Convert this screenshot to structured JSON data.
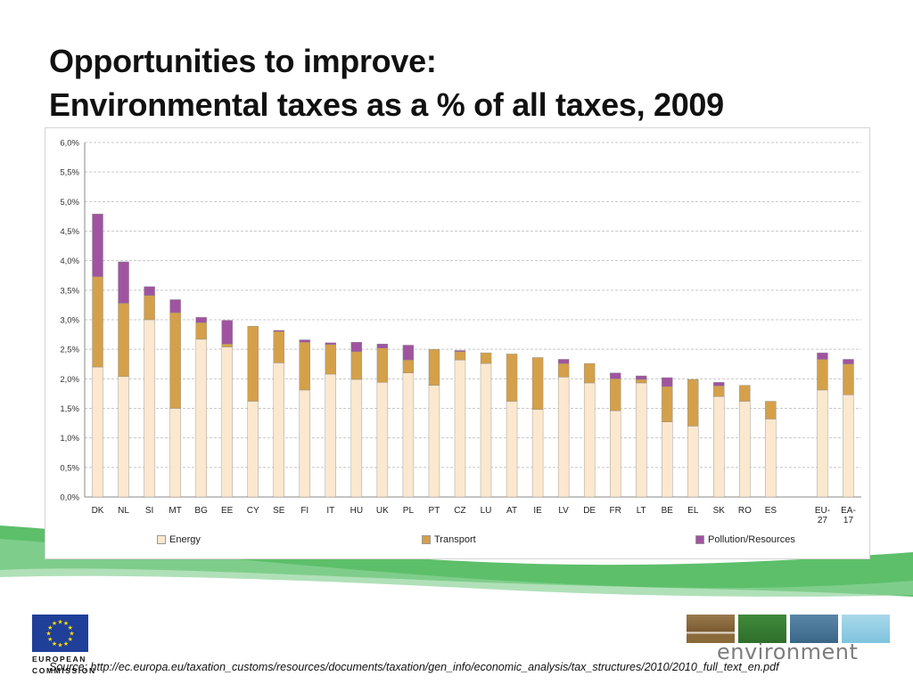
{
  "slide": {
    "title_line1": "Opportunities to improve:",
    "title_line2": "Environmental taxes as a % of all taxes, 2009",
    "source": "Source: http://ec.europa.eu/taxation_customs/resources/documents/taxation/gen_info/economic_analysis/tax_structures/2010/2010_full_text_en.pdf",
    "eu_logo_text": [
      "EUROPEAN",
      "COMMISSION"
    ],
    "env_logo_text": "environment"
  },
  "colors": {
    "energy": "#fce8cf",
    "transport": "#d4a04a",
    "pollution": "#a054a0",
    "grid": "#c8c8c8",
    "green_band": "#5dbf6a",
    "eu_blue": "#1f3f99",
    "eu_star": "#ffdd00"
  },
  "legend": [
    {
      "key": "energy",
      "label": "Energy"
    },
    {
      "key": "transport",
      "label": "Transport"
    },
    {
      "key": "pollution",
      "label": "Pollution/Resources"
    }
  ],
  "chart_data": {
    "type": "bar",
    "stacked": true,
    "title": "",
    "xlabel": "",
    "ylabel": "",
    "ylim": [
      0,
      6.0
    ],
    "yticks": [
      "0,0%",
      "0,5%",
      "1,0%",
      "1,5%",
      "2,0%",
      "2,5%",
      "3,0%",
      "3,5%",
      "4,0%",
      "4,5%",
      "5,0%",
      "5,5%",
      "6,0%"
    ],
    "grid": true,
    "legend_position": "bottom",
    "categories": [
      "DK",
      "NL",
      "SI",
      "MT",
      "BG",
      "EE",
      "CY",
      "SE",
      "FI",
      "IT",
      "HU",
      "UK",
      "PL",
      "PT",
      "CZ",
      "LU",
      "AT",
      "IE",
      "LV",
      "DE",
      "FR",
      "LT",
      "BE",
      "EL",
      "SK",
      "RO",
      "ES",
      "",
      "EU-27",
      "EA-17"
    ],
    "series": [
      {
        "name": "Energy",
        "key": "energy",
        "values": [
          2.2,
          2.04,
          3.0,
          1.5,
          2.67,
          2.54,
          1.62,
          2.27,
          1.81,
          2.08,
          1.99,
          1.94,
          2.1,
          1.89,
          2.32,
          2.26,
          1.62,
          1.48,
          2.03,
          1.93,
          1.46,
          1.93,
          1.27,
          1.2,
          1.7,
          1.62,
          1.32,
          null,
          1.81,
          1.73
        ]
      },
      {
        "name": "Transport",
        "key": "transport",
        "values": [
          1.53,
          1.24,
          0.41,
          1.62,
          0.28,
          0.05,
          1.27,
          0.53,
          0.81,
          0.5,
          0.47,
          0.58,
          0.22,
          0.61,
          0.14,
          0.18,
          0.8,
          0.88,
          0.23,
          0.33,
          0.54,
          0.06,
          0.6,
          0.79,
          0.18,
          0.27,
          0.3,
          null,
          0.52,
          0.52
        ]
      },
      {
        "name": "Pollution/Resources",
        "key": "pollution",
        "values": [
          1.06,
          0.7,
          0.15,
          0.22,
          0.09,
          0.4,
          0.0,
          0.02,
          0.04,
          0.03,
          0.16,
          0.07,
          0.25,
          0.0,
          0.02,
          0.0,
          0.0,
          0.0,
          0.07,
          0.0,
          0.1,
          0.06,
          0.15,
          0.0,
          0.06,
          0.0,
          0.0,
          null,
          0.11,
          0.08
        ]
      }
    ]
  }
}
